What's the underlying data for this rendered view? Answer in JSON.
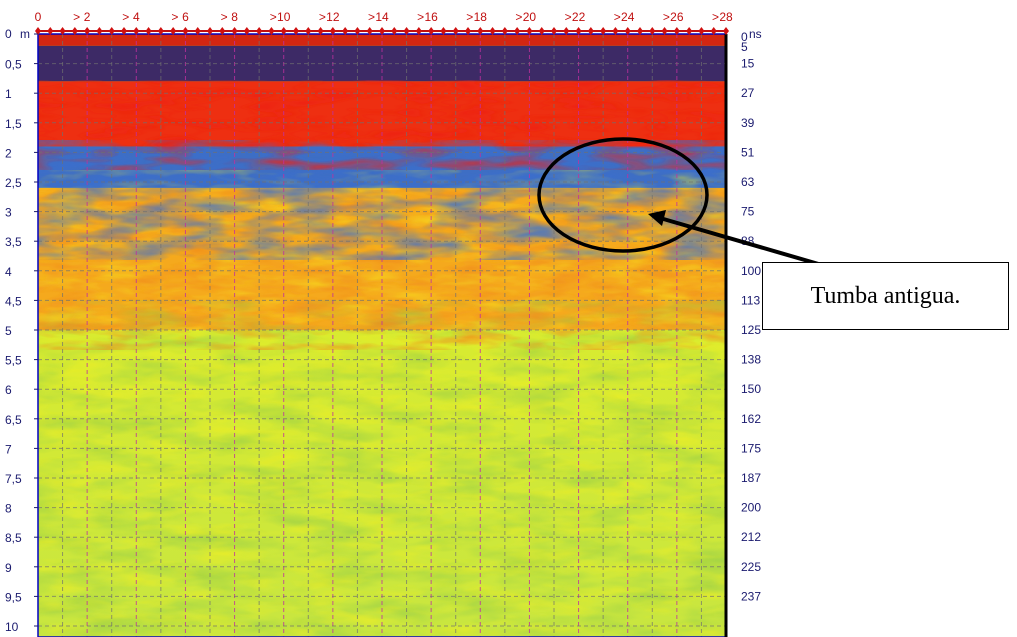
{
  "chart_data": {
    "type": "heatmap",
    "title": "",
    "x_axis": {
      "ticks": [
        "0",
        "2",
        "4",
        "6",
        "8",
        "10",
        "12",
        "14",
        "16",
        "18",
        "20",
        "22",
        "24",
        "26",
        "28"
      ],
      "range": [
        0,
        28
      ]
    },
    "y_left_axis": {
      "unit_label": "m",
      "ticks": [
        "0",
        "0,5",
        "1",
        "1,5",
        "2",
        "2,5",
        "3",
        "3,5",
        "4",
        "4,5",
        "5",
        "5,5",
        "6",
        "6,5",
        "7",
        "7,5",
        "8",
        "8,5",
        "9",
        "9,5",
        "10"
      ],
      "range": [
        0,
        10
      ]
    },
    "y_right_axis": {
      "unit_label": "ns",
      "ticks": [
        "0",
        "5",
        "15",
        "27",
        "39",
        "51",
        "63",
        "75",
        "88",
        "100",
        "113",
        "125",
        "138",
        "150",
        "162",
        "175",
        "187",
        "200",
        "212",
        "225",
        "237"
      ]
    },
    "colormap": [
      "#1a0f6e",
      "#2c5fd6",
      "#4ab0a8",
      "#b6df2c",
      "#f5f010",
      "#f7a21c",
      "#ee2010"
    ],
    "bands": [
      {
        "depth_m": [
          0.0,
          0.2
        ],
        "description_color": "#d01010"
      },
      {
        "depth_m": [
          0.2,
          0.8
        ],
        "description_color": "#2a146e"
      },
      {
        "depth_m": [
          0.8,
          1.9
        ],
        "description_color": "#ee1a10"
      },
      {
        "depth_m": [
          1.9,
          2.6
        ],
        "description_color": "#2c5fd6"
      },
      {
        "depth_m": [
          2.6,
          5.0
        ],
        "description_color": "#f7a21c"
      },
      {
        "depth_m": [
          5.0,
          10.0
        ],
        "description_color": "#d8e830"
      }
    ],
    "grid": true,
    "annotation": {
      "text": "Tumba antigua.",
      "target_x": 24.5,
      "target_depth_m": 3.0
    }
  }
}
